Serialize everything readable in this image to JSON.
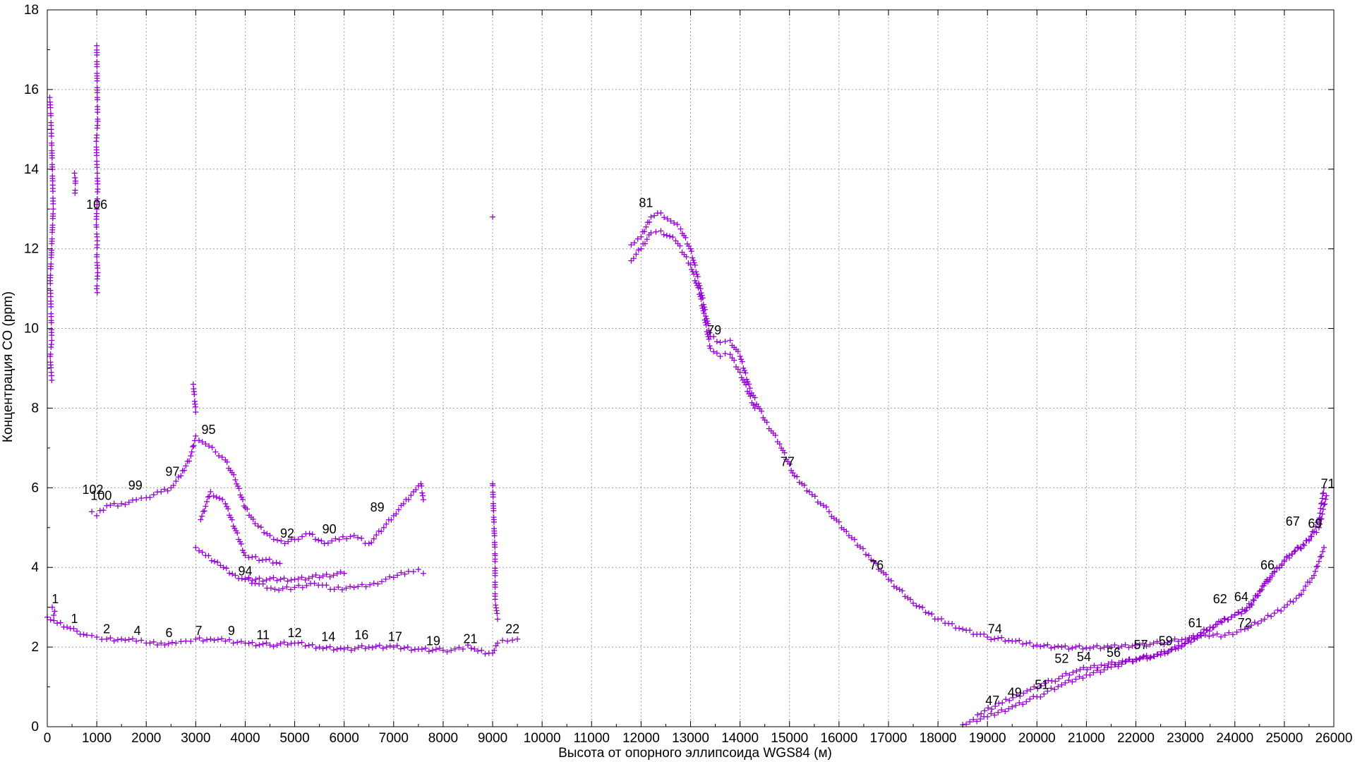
{
  "chart_data": {
    "type": "scatter",
    "xlabel": "Высота от опорного эллипсоида WGS84 (м)",
    "ylabel": "Концентрация CO (ppm)",
    "xlim": [
      0,
      26000
    ],
    "ylim": [
      0,
      18
    ],
    "x_ticks": [
      0,
      1000,
      2000,
      3000,
      4000,
      5000,
      6000,
      7000,
      8000,
      9000,
      10000,
      11000,
      12000,
      13000,
      14000,
      15000,
      16000,
      17000,
      18000,
      19000,
      20000,
      21000,
      22000,
      23000,
      24000,
      25000,
      26000
    ],
    "y_ticks": [
      0,
      2,
      4,
      6,
      8,
      10,
      12,
      14,
      16,
      18
    ],
    "grid": true,
    "marker": "+",
    "color": "#9400d3",
    "series": [
      {
        "points": [
          [
            0,
            2.75
          ],
          [
            200,
            2.6
          ],
          [
            400,
            2.5
          ],
          [
            600,
            2.4
          ],
          [
            800,
            2.3
          ],
          [
            1000,
            2.25
          ],
          [
            1200,
            2.2
          ],
          [
            1500,
            2.2
          ],
          [
            1800,
            2.15
          ],
          [
            2000,
            2.1
          ],
          [
            2300,
            2.1
          ],
          [
            2600,
            2.1
          ],
          [
            2800,
            2.15
          ],
          [
            3000,
            2.2
          ],
          [
            3300,
            2.2
          ],
          [
            3600,
            2.15
          ],
          [
            4000,
            2.1
          ],
          [
            4500,
            2.05
          ],
          [
            5000,
            2.1
          ],
          [
            5500,
            2.0
          ],
          [
            6000,
            1.95
          ],
          [
            6500,
            2.0
          ],
          [
            7000,
            2.0
          ],
          [
            7500,
            1.95
          ],
          [
            8000,
            1.92
          ],
          [
            8400,
            1.95
          ],
          [
            8500,
            2.05
          ],
          [
            8700,
            1.9
          ],
          [
            9000,
            1.85
          ],
          [
            9100,
            2.1
          ],
          [
            9300,
            2.15
          ],
          [
            9500,
            2.2
          ]
        ]
      },
      {
        "points": [
          [
            100,
            3.0
          ],
          [
            150,
            2.9
          ],
          [
            130,
            2.8
          ]
        ]
      },
      {
        "points": [
          [
            50,
            15.8
          ],
          [
            70,
            15.4
          ],
          [
            80,
            15.0
          ],
          [
            90,
            14.6
          ],
          [
            110,
            13.6
          ],
          [
            120,
            13.0
          ],
          [
            60,
            11.2
          ],
          [
            70,
            10.8
          ],
          [
            80,
            10.2
          ],
          [
            90,
            9.7
          ],
          [
            60,
            9.3
          ],
          [
            80,
            8.9
          ],
          [
            90,
            8.7
          ]
        ]
      },
      {
        "points": [
          [
            550,
            13.9
          ],
          [
            570,
            13.7
          ],
          [
            560,
            13.4
          ]
        ]
      },
      {
        "points": [
          [
            1000,
            17.1
          ],
          [
            1010,
            15.8
          ],
          [
            1020,
            15.2
          ],
          [
            990,
            14.7
          ],
          [
            1000,
            14.2
          ],
          [
            1010,
            13.9
          ],
          [
            1020,
            13.5
          ],
          [
            1000,
            13.0
          ],
          [
            990,
            12.6
          ],
          [
            1010,
            12.2
          ],
          [
            1000,
            11.8
          ],
          [
            1020,
            11.4
          ],
          [
            1000,
            11.0
          ],
          [
            1010,
            10.9
          ]
        ]
      },
      {
        "points": [
          [
            900,
            5.4
          ],
          [
            1000,
            5.3
          ],
          [
            1200,
            5.55
          ],
          [
            1500,
            5.6
          ],
          [
            1800,
            5.7
          ],
          [
            2000,
            5.75
          ],
          [
            2300,
            5.9
          ],
          [
            2500,
            6.0
          ],
          [
            2700,
            6.3
          ],
          [
            2900,
            6.8
          ],
          [
            3000,
            7.3
          ],
          [
            3200,
            7.1
          ],
          [
            3400,
            6.9
          ],
          [
            3600,
            6.7
          ],
          [
            3800,
            6.2
          ],
          [
            4000,
            5.5
          ],
          [
            4200,
            5.1
          ],
          [
            4500,
            4.8
          ],
          [
            4800,
            4.6
          ],
          [
            5000,
            4.7
          ],
          [
            5300,
            4.85
          ],
          [
            5600,
            4.6
          ],
          [
            5900,
            4.7
          ],
          [
            6200,
            4.8
          ],
          [
            6500,
            4.6
          ],
          [
            6800,
            5.0
          ],
          [
            7000,
            5.3
          ],
          [
            7200,
            5.6
          ],
          [
            7400,
            5.9
          ],
          [
            7550,
            6.1
          ],
          [
            7600,
            5.7
          ]
        ]
      },
      {
        "points": [
          [
            3000,
            4.5
          ],
          [
            3200,
            4.3
          ],
          [
            3500,
            4.05
          ],
          [
            3800,
            3.8
          ],
          [
            4200,
            3.6
          ],
          [
            4600,
            3.45
          ],
          [
            5000,
            3.5
          ],
          [
            5400,
            3.6
          ],
          [
            5800,
            3.45
          ],
          [
            6200,
            3.5
          ],
          [
            6600,
            3.6
          ],
          [
            7000,
            3.75
          ],
          [
            7300,
            3.9
          ],
          [
            7500,
            3.95
          ],
          [
            7600,
            3.85
          ],
          [
            4000,
            3.7
          ],
          [
            5000,
            3.7
          ],
          [
            6000,
            3.85
          ]
        ]
      },
      {
        "points": [
          [
            2950,
            8.6
          ],
          [
            3000,
            7.9
          ],
          [
            3100,
            5.2
          ],
          [
            3300,
            5.9
          ],
          [
            3600,
            5.6
          ],
          [
            4000,
            4.3
          ],
          [
            4700,
            4.1
          ],
          [
            9000,
            12.8
          ],
          [
            9000,
            6.1
          ],
          [
            9050,
            4.3
          ],
          [
            9050,
            3.2
          ],
          [
            9100,
            2.7
          ]
        ]
      },
      {
        "points": [
          [
            11800,
            12.1
          ],
          [
            12000,
            12.3
          ],
          [
            12200,
            12.8
          ],
          [
            12400,
            12.9
          ],
          [
            12600,
            12.7
          ],
          [
            12800,
            12.5
          ],
          [
            13000,
            12.0
          ],
          [
            13200,
            11.0
          ],
          [
            13400,
            9.8
          ],
          [
            13600,
            9.65
          ],
          [
            13800,
            9.7
          ],
          [
            14000,
            9.3
          ],
          [
            14200,
            8.5
          ],
          [
            14500,
            7.7
          ],
          [
            14800,
            7.1
          ],
          [
            15100,
            6.3
          ],
          [
            15400,
            5.9
          ],
          [
            15800,
            5.4
          ],
          [
            16200,
            4.8
          ],
          [
            16600,
            4.3
          ],
          [
            17000,
            3.7
          ],
          [
            17500,
            3.1
          ],
          [
            18000,
            2.7
          ],
          [
            18500,
            2.45
          ],
          [
            19000,
            2.25
          ],
          [
            19500,
            2.15
          ],
          [
            20000,
            2.05
          ],
          [
            20500,
            2.0
          ],
          [
            21000,
            1.98
          ],
          [
            21500,
            2.0
          ],
          [
            22000,
            2.05
          ],
          [
            22500,
            2.1
          ],
          [
            23000,
            2.2
          ],
          [
            23400,
            2.3
          ],
          [
            23800,
            2.3
          ],
          [
            24200,
            2.45
          ],
          [
            24600,
            2.7
          ],
          [
            25000,
            3.0
          ],
          [
            25300,
            3.3
          ],
          [
            25600,
            3.8
          ],
          [
            25800,
            4.5
          ]
        ]
      },
      {
        "points": [
          [
            11800,
            11.7
          ],
          [
            12000,
            12.0
          ],
          [
            12200,
            12.4
          ],
          [
            12400,
            12.45
          ],
          [
            12700,
            12.2
          ],
          [
            13000,
            11.6
          ],
          [
            13200,
            10.8
          ],
          [
            13400,
            9.5
          ],
          [
            13600,
            9.3
          ],
          [
            13800,
            9.35
          ],
          [
            14000,
            8.9
          ],
          [
            14300,
            8.0
          ]
        ]
      },
      {
        "points": [
          [
            18500,
            0.05
          ],
          [
            19000,
            0.25
          ],
          [
            19500,
            0.5
          ],
          [
            20000,
            0.75
          ],
          [
            20500,
            1.05
          ],
          [
            21000,
            1.3
          ],
          [
            21500,
            1.5
          ],
          [
            22000,
            1.7
          ],
          [
            22500,
            1.8
          ],
          [
            23000,
            2.1
          ],
          [
            23500,
            2.5
          ],
          [
            24000,
            2.8
          ],
          [
            24300,
            3.0
          ],
          [
            24600,
            3.6
          ],
          [
            24900,
            4.0
          ],
          [
            25200,
            4.4
          ],
          [
            25500,
            4.7
          ],
          [
            25700,
            5.2
          ],
          [
            25800,
            6.0
          ]
        ]
      },
      {
        "points": [
          [
            18800,
            0.3
          ],
          [
            19300,
            0.6
          ],
          [
            19800,
            0.9
          ],
          [
            20300,
            1.15
          ],
          [
            20800,
            1.4
          ],
          [
            21300,
            1.55
          ],
          [
            21800,
            1.65
          ],
          [
            22300,
            1.75
          ],
          [
            22800,
            1.95
          ],
          [
            23300,
            2.3
          ],
          [
            23800,
            2.7
          ],
          [
            24200,
            2.9
          ],
          [
            24500,
            3.4
          ],
          [
            24800,
            3.9
          ],
          [
            25100,
            4.3
          ],
          [
            25400,
            4.55
          ],
          [
            25700,
            5.0
          ],
          [
            25850,
            5.8
          ]
        ]
      }
    ],
    "annotations": [
      {
        "label": "1",
        "x": 160,
        "y": 3.1
      },
      {
        "label": "1",
        "x": 550,
        "y": 2.6
      },
      {
        "label": "2",
        "x": 1200,
        "y": 2.35
      },
      {
        "label": "4",
        "x": 1820,
        "y": 2.3
      },
      {
        "label": "6",
        "x": 2460,
        "y": 2.25
      },
      {
        "label": "7",
        "x": 3060,
        "y": 2.3
      },
      {
        "label": "9",
        "x": 3720,
        "y": 2.3
      },
      {
        "label": "11",
        "x": 4360,
        "y": 2.2
      },
      {
        "label": "12",
        "x": 5000,
        "y": 2.25
      },
      {
        "label": "14",
        "x": 5680,
        "y": 2.15
      },
      {
        "label": "16",
        "x": 6350,
        "y": 2.2
      },
      {
        "label": "17",
        "x": 7030,
        "y": 2.15
      },
      {
        "label": "19",
        "x": 7800,
        "y": 2.05
      },
      {
        "label": "21",
        "x": 8550,
        "y": 2.1
      },
      {
        "label": "22",
        "x": 9400,
        "y": 2.35
      },
      {
        "label": "106",
        "x": 1000,
        "y": 13.0
      },
      {
        "label": "102",
        "x": 920,
        "y": 5.85
      },
      {
        "label": "100",
        "x": 1090,
        "y": 5.7
      },
      {
        "label": "99",
        "x": 1780,
        "y": 5.95
      },
      {
        "label": "97",
        "x": 2530,
        "y": 6.3
      },
      {
        "label": "95",
        "x": 3260,
        "y": 7.35
      },
      {
        "label": "94",
        "x": 4000,
        "y": 3.8
      },
      {
        "label": "92",
        "x": 4850,
        "y": 4.75
      },
      {
        "label": "90",
        "x": 5700,
        "y": 4.85
      },
      {
        "label": "89",
        "x": 6670,
        "y": 5.4
      },
      {
        "label": "81",
        "x": 12100,
        "y": 13.05
      },
      {
        "label": "79",
        "x": 13480,
        "y": 9.85
      },
      {
        "label": "77",
        "x": 14960,
        "y": 6.55
      },
      {
        "label": "76",
        "x": 16760,
        "y": 3.95
      },
      {
        "label": "74",
        "x": 19150,
        "y": 2.35
      },
      {
        "label": "52",
        "x": 20500,
        "y": 1.6
      },
      {
        "label": "54",
        "x": 20950,
        "y": 1.65
      },
      {
        "label": "56",
        "x": 21550,
        "y": 1.75
      },
      {
        "label": "57",
        "x": 22100,
        "y": 1.95
      },
      {
        "label": "59",
        "x": 22600,
        "y": 2.05
      },
      {
        "label": "61",
        "x": 23200,
        "y": 2.5
      },
      {
        "label": "62",
        "x": 23700,
        "y": 3.1
      },
      {
        "label": "64",
        "x": 24130,
        "y": 3.15
      },
      {
        "label": "72",
        "x": 24200,
        "y": 2.5
      },
      {
        "label": "66",
        "x": 24660,
        "y": 3.95
      },
      {
        "label": "67",
        "x": 25170,
        "y": 5.05
      },
      {
        "label": "69",
        "x": 25620,
        "y": 5.0
      },
      {
        "label": "71",
        "x": 25880,
        "y": 6.0
      },
      {
        "label": "47",
        "x": 19100,
        "y": 0.55
      },
      {
        "label": "49",
        "x": 19550,
        "y": 0.75
      },
      {
        "label": "51",
        "x": 20100,
        "y": 0.95
      }
    ]
  }
}
